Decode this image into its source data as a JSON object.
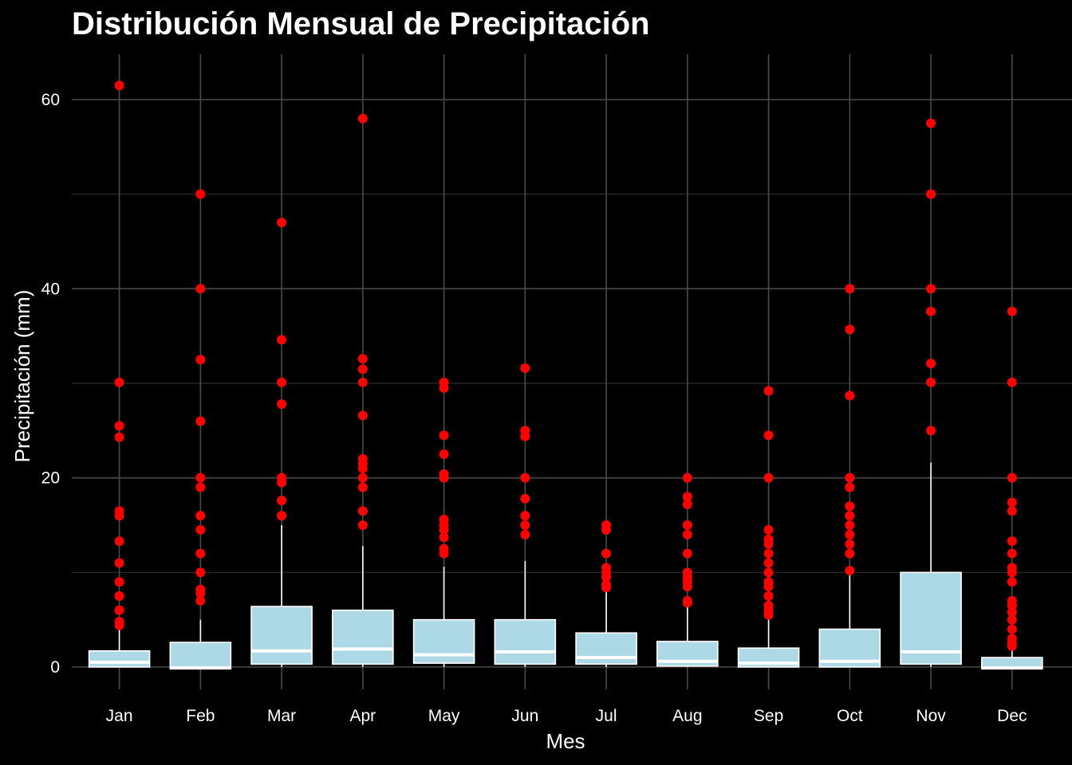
{
  "chart_data": {
    "type": "box",
    "title": "Distribución Mensual de Precipitación",
    "xlabel": "Mes",
    "ylabel": "Precipitación (mm)",
    "ylim": [
      -2.5,
      64
    ],
    "yticks": [
      0,
      20,
      40,
      60
    ],
    "categories": [
      "Jan",
      "Feb",
      "Mar",
      "Apr",
      "May",
      "Jun",
      "Jul",
      "Aug",
      "Sep",
      "Oct",
      "Nov",
      "Dec"
    ],
    "boxes": [
      {
        "q1": 0.0,
        "median": 0.5,
        "q3": 1.7,
        "whisker_low": 0.0,
        "whisker_high": 4.0,
        "outliers": [
          61.5,
          30.1,
          25.5,
          24.3,
          16.5,
          16.0,
          13.3,
          11.0,
          9.0,
          7.5,
          6.0,
          4.8,
          4.4
        ]
      },
      {
        "q1": -0.2,
        "median": -0.1,
        "q3": 2.6,
        "whisker_low": -0.2,
        "whisker_high": 5.0,
        "outliers": [
          50.0,
          40.0,
          32.5,
          26.0,
          20.0,
          19.0,
          16.0,
          14.5,
          12.0,
          10.0,
          8.2,
          7.8,
          7.0
        ]
      },
      {
        "q1": 0.3,
        "median": 1.7,
        "q3": 6.4,
        "whisker_low": 0.0,
        "whisker_high": 15.0,
        "outliers": [
          47.0,
          34.6,
          30.1,
          27.8,
          20.0,
          19.5,
          17.6,
          16.0
        ]
      },
      {
        "q1": 0.3,
        "median": 1.9,
        "q3": 6.0,
        "whisker_low": 0.0,
        "whisker_high": 12.8,
        "outliers": [
          58.0,
          32.6,
          31.5,
          30.1,
          26.6,
          22.0,
          21.5,
          21.0,
          20.0,
          19.0,
          16.5,
          15.0
        ]
      },
      {
        "q1": 0.4,
        "median": 1.3,
        "q3": 5.0,
        "whisker_low": 0.0,
        "whisker_high": 10.6,
        "outliers": [
          30.1,
          29.5,
          24.5,
          22.5,
          20.4,
          20.0,
          15.6,
          15.0,
          14.5,
          13.7,
          12.5,
          12.0
        ]
      },
      {
        "q1": 0.3,
        "median": 1.6,
        "q3": 5.0,
        "whisker_low": 0.0,
        "whisker_high": 11.2,
        "outliers": [
          31.6,
          25.0,
          24.4,
          20.0,
          17.8,
          16.0,
          15.0,
          14.0
        ]
      },
      {
        "q1": 0.3,
        "median": 1.0,
        "q3": 3.6,
        "whisker_low": 0.0,
        "whisker_high": 8.0,
        "outliers": [
          15.0,
          14.5,
          12.0,
          10.5,
          10.0,
          9.5,
          8.7,
          8.4
        ]
      },
      {
        "q1": 0.1,
        "median": 0.6,
        "q3": 2.7,
        "whisker_low": 0.0,
        "whisker_high": 6.4,
        "outliers": [
          20.0,
          18.0,
          17.2,
          15.0,
          14.0,
          12.0,
          10.0,
          9.5,
          9.0,
          8.5,
          7.0,
          6.8
        ]
      },
      {
        "q1": 0.0,
        "median": 0.4,
        "q3": 2.0,
        "whisker_low": 0.0,
        "whisker_high": 5.0,
        "outliers": [
          29.2,
          24.5,
          20.0,
          14.5,
          13.5,
          13.0,
          12.0,
          11.0,
          10.0,
          9.0,
          8.5,
          7.5,
          6.5,
          6.0,
          5.5
        ]
      },
      {
        "q1": 0.0,
        "median": 0.6,
        "q3": 4.0,
        "whisker_low": 0.0,
        "whisker_high": 9.9,
        "outliers": [
          40.0,
          35.7,
          28.7,
          20.0,
          19.0,
          17.0,
          16.0,
          15.0,
          14.0,
          13.0,
          12.0,
          10.2
        ]
      },
      {
        "q1": 0.3,
        "median": 1.6,
        "q3": 10.0,
        "whisker_low": 0.0,
        "whisker_high": 21.6,
        "outliers": [
          57.5,
          50.0,
          40.0,
          37.6,
          32.1,
          30.1,
          25.0
        ]
      },
      {
        "q1": -0.2,
        "median": -0.1,
        "q3": 1.0,
        "whisker_low": -0.2,
        "whisker_high": 2.0,
        "outliers": [
          37.6,
          30.1,
          20.0,
          17.4,
          16.5,
          13.3,
          12.0,
          10.5,
          10.0,
          9.0,
          7.0,
          6.5,
          5.8,
          5.0,
          4.0,
          3.0,
          2.5,
          2.2
        ]
      }
    ],
    "colors": {
      "background": "#000000",
      "grid": "#4a4a4a",
      "box_fill": "#add8e6",
      "box_outline": "#ffffff",
      "median_line": "#ffffff",
      "whisker": "#ffffff",
      "outlier": "#ff0000",
      "text": "#ffffff"
    },
    "grid": true,
    "legend": "none"
  }
}
